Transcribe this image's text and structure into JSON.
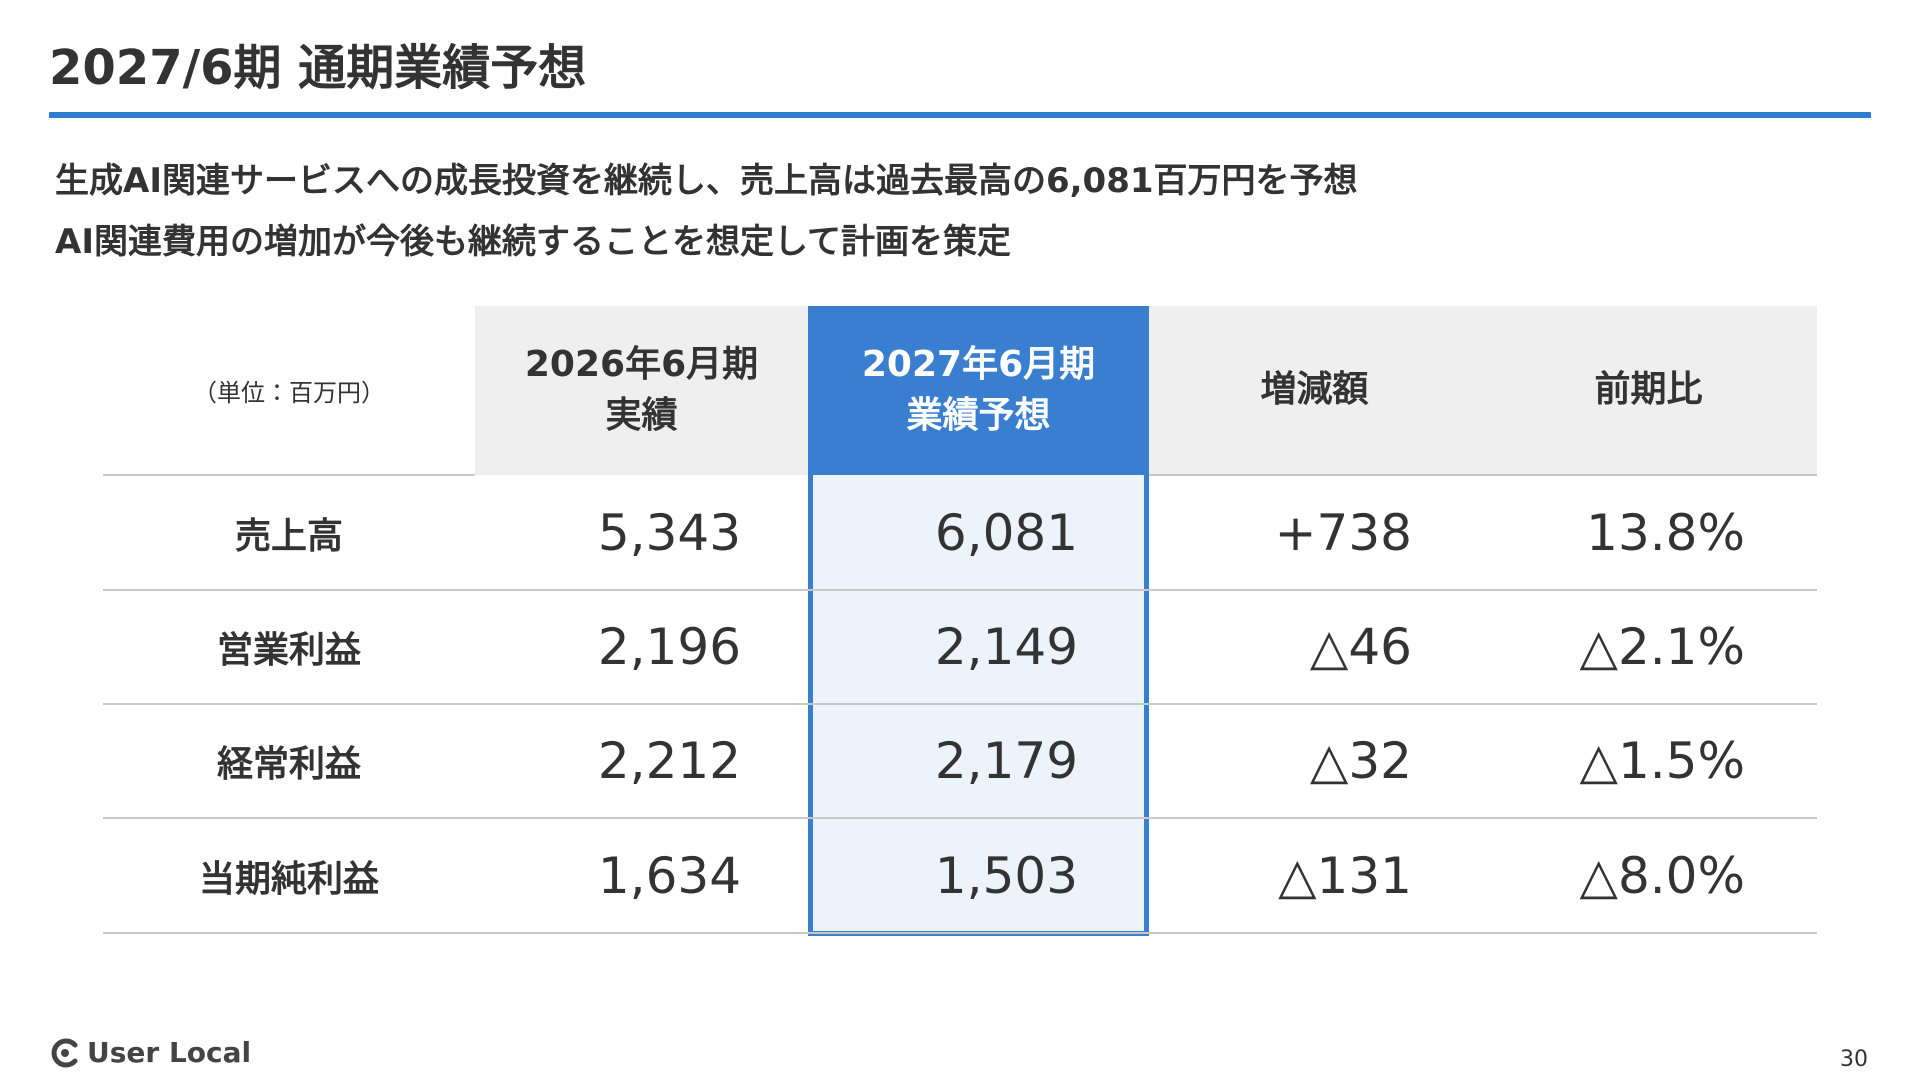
{
  "header": {
    "title": "2027/6期 通期業績予想"
  },
  "subtitle": [
    "生成AI関連サービスへの成長投資を継続し、売上高は過去最高の6,081百万円を予想",
    "AI関連費用の増加が今後も継続することを想定して計画を策定"
  ],
  "table": {
    "unit": "（単位：百万円）",
    "columns": [
      [
        "2026年6月期",
        "実績"
      ],
      [
        "2027年6月期",
        "業績予想"
      ],
      [
        "増減額"
      ],
      [
        "前期比"
      ]
    ],
    "rows": [
      {
        "label": "売上高",
        "cells": [
          "5,343",
          "6,081",
          "+738",
          "13.8%"
        ]
      },
      {
        "label": "営業利益",
        "cells": [
          "2,196",
          "2,149",
          "△46",
          "△2.1%"
        ]
      },
      {
        "label": "経常利益",
        "cells": [
          "2,212",
          "2,179",
          "△32",
          "△1.5%"
        ]
      },
      {
        "label": "当期純利益",
        "cells": [
          "1,634",
          "1,503",
          "△131",
          "△8.0%"
        ]
      }
    ]
  },
  "footer": {
    "logo": "User Local",
    "page": "30"
  }
}
